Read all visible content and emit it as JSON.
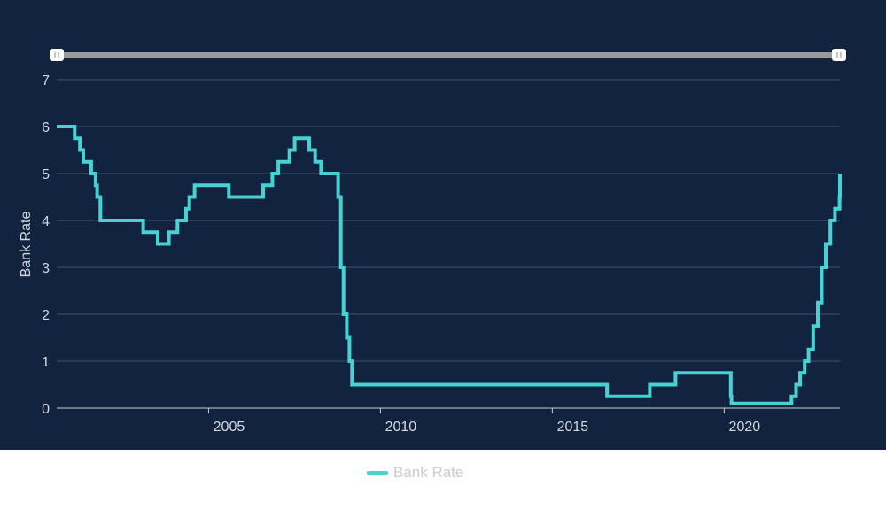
{
  "colors": {
    "background": "#12233f",
    "line": "#45d2d2",
    "grid": "#3e5470",
    "axis_text": "#d4d8de",
    "slider_track": "#9a9a9a",
    "handle": "#ffffff"
  },
  "range_slider": {
    "start": 0,
    "end": 1
  },
  "legend": {
    "label": "Bank Rate"
  },
  "chart_data": {
    "type": "line",
    "step": "after",
    "title": "",
    "xlabel": "",
    "ylabel": "Bank Rate",
    "xlim": [
      "2000-08-01",
      "2023-05-15"
    ],
    "ylim": [
      0,
      7
    ],
    "yticks": [
      0,
      1,
      2,
      3,
      4,
      5,
      6,
      7
    ],
    "xticks": [
      {
        "date": "2005-01-01",
        "label": "2005"
      },
      {
        "date": "2010-01-01",
        "label": "2010"
      },
      {
        "date": "2015-01-01",
        "label": "2015"
      },
      {
        "date": "2020-01-01",
        "label": "2020"
      }
    ],
    "grid": "horizontal",
    "legend_position": "bottom-center",
    "series": [
      {
        "name": "Bank Rate",
        "points": [
          [
            "2000-08-01",
            6.0
          ],
          [
            "2001-02-08",
            5.75
          ],
          [
            "2001-04-05",
            5.5
          ],
          [
            "2001-05-10",
            5.25
          ],
          [
            "2001-08-02",
            5.0
          ],
          [
            "2001-09-18",
            4.75
          ],
          [
            "2001-10-04",
            4.5
          ],
          [
            "2001-11-08",
            4.0
          ],
          [
            "2003-02-06",
            3.75
          ],
          [
            "2003-07-10",
            3.5
          ],
          [
            "2003-11-06",
            3.75
          ],
          [
            "2004-02-05",
            4.0
          ],
          [
            "2004-05-06",
            4.25
          ],
          [
            "2004-06-10",
            4.5
          ],
          [
            "2004-08-05",
            4.75
          ],
          [
            "2005-08-04",
            4.5
          ],
          [
            "2006-08-03",
            4.75
          ],
          [
            "2006-11-09",
            5.0
          ],
          [
            "2007-01-11",
            5.25
          ],
          [
            "2007-05-10",
            5.5
          ],
          [
            "2007-07-05",
            5.75
          ],
          [
            "2007-12-06",
            5.5
          ],
          [
            "2008-02-07",
            5.25
          ],
          [
            "2008-04-10",
            5.0
          ],
          [
            "2008-10-08",
            4.5
          ],
          [
            "2008-11-06",
            3.0
          ],
          [
            "2008-12-04",
            2.0
          ],
          [
            "2009-01-08",
            1.5
          ],
          [
            "2009-02-05",
            1.0
          ],
          [
            "2009-03-05",
            0.5
          ],
          [
            "2016-08-04",
            0.25
          ],
          [
            "2017-11-02",
            0.5
          ],
          [
            "2018-08-02",
            0.75
          ],
          [
            "2020-03-11",
            0.25
          ],
          [
            "2020-03-19",
            0.1
          ],
          [
            "2021-12-16",
            0.25
          ],
          [
            "2022-02-03",
            0.5
          ],
          [
            "2022-03-17",
            0.75
          ],
          [
            "2022-05-05",
            1.0
          ],
          [
            "2022-06-16",
            1.25
          ],
          [
            "2022-08-04",
            1.75
          ],
          [
            "2022-09-22",
            2.25
          ],
          [
            "2022-11-03",
            3.0
          ],
          [
            "2022-12-15",
            3.5
          ],
          [
            "2023-02-02",
            4.0
          ],
          [
            "2023-03-23",
            4.25
          ],
          [
            "2023-05-11",
            4.5
          ],
          [
            "2023-06-22",
            5.0
          ],
          [
            "2023-07-15",
            5.0
          ]
        ]
      }
    ]
  }
}
